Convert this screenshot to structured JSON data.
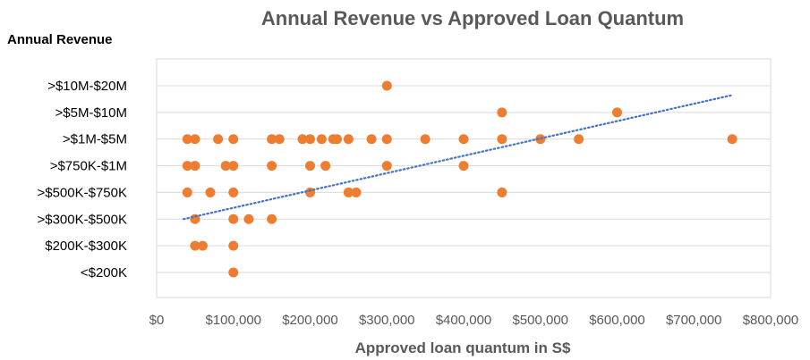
{
  "chart_data": {
    "type": "scatter",
    "title": "Annual Revenue vs Approved Loan Quantum",
    "xlabel": "Approved loan quantum in S$",
    "ylabel": "Annual Revenue",
    "xlim": [
      0,
      800000
    ],
    "x_ticks": [
      0,
      100000,
      200000,
      300000,
      400000,
      500000,
      600000,
      700000,
      800000
    ],
    "x_tick_labels": [
      "$0",
      "$100,000",
      "$200,000",
      "$300,000",
      "$400,000",
      "$500,000",
      "$600,000",
      "$700,000",
      "$800,000"
    ],
    "y_categories": [
      "<$200K",
      "$200K-$300K",
      ">$300K-$500K",
      ">$500K-$750K",
      ">$750K-$1M",
      ">$1M-$5M",
      ">$5M-$10M",
      ">$10M-$20M"
    ],
    "grid": true,
    "legend": "none",
    "marker_color": "#ed7d31",
    "trendline_color": "#4472c4",
    "trendline": {
      "type": "linear",
      "x": [
        35000,
        750000
      ],
      "y": [
        3.0,
        7.65
      ]
    },
    "points": [
      {
        "x": 100000,
        "y": 1
      },
      {
        "x": 50000,
        "y": 2
      },
      {
        "x": 60000,
        "y": 2
      },
      {
        "x": 100000,
        "y": 2
      },
      {
        "x": 50000,
        "y": 3
      },
      {
        "x": 100000,
        "y": 3
      },
      {
        "x": 120000,
        "y": 3
      },
      {
        "x": 150000,
        "y": 3
      },
      {
        "x": 40000,
        "y": 4
      },
      {
        "x": 70000,
        "y": 4
      },
      {
        "x": 100000,
        "y": 4
      },
      {
        "x": 200000,
        "y": 4
      },
      {
        "x": 250000,
        "y": 4
      },
      {
        "x": 260000,
        "y": 4
      },
      {
        "x": 450000,
        "y": 4
      },
      {
        "x": 40000,
        "y": 5
      },
      {
        "x": 50000,
        "y": 5
      },
      {
        "x": 90000,
        "y": 5
      },
      {
        "x": 100000,
        "y": 5
      },
      {
        "x": 150000,
        "y": 5
      },
      {
        "x": 200000,
        "y": 5
      },
      {
        "x": 220000,
        "y": 5
      },
      {
        "x": 300000,
        "y": 5
      },
      {
        "x": 400000,
        "y": 5
      },
      {
        "x": 40000,
        "y": 6
      },
      {
        "x": 50000,
        "y": 6
      },
      {
        "x": 80000,
        "y": 6
      },
      {
        "x": 100000,
        "y": 6
      },
      {
        "x": 150000,
        "y": 6
      },
      {
        "x": 160000,
        "y": 6
      },
      {
        "x": 190000,
        "y": 6
      },
      {
        "x": 200000,
        "y": 6
      },
      {
        "x": 215000,
        "y": 6
      },
      {
        "x": 230000,
        "y": 6
      },
      {
        "x": 235000,
        "y": 6
      },
      {
        "x": 250000,
        "y": 6
      },
      {
        "x": 280000,
        "y": 6
      },
      {
        "x": 300000,
        "y": 6
      },
      {
        "x": 350000,
        "y": 6
      },
      {
        "x": 400000,
        "y": 6
      },
      {
        "x": 450000,
        "y": 6
      },
      {
        "x": 500000,
        "y": 6
      },
      {
        "x": 550000,
        "y": 6
      },
      {
        "x": 750000,
        "y": 6
      },
      {
        "x": 450000,
        "y": 7
      },
      {
        "x": 600000,
        "y": 7
      },
      {
        "x": 300000,
        "y": 8
      }
    ]
  }
}
